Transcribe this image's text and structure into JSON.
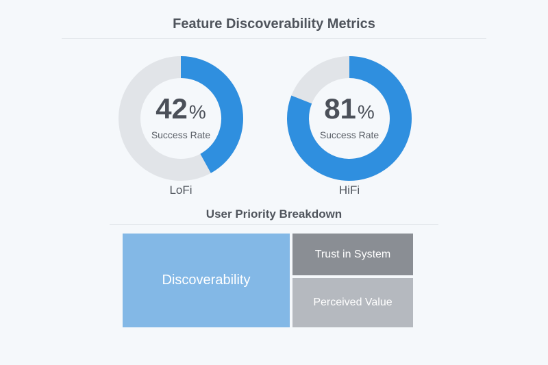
{
  "title": "Feature Discoverability Metrics",
  "colors": {
    "track": "#e1e4e8",
    "accent": "#2f8fdf",
    "discoverability": "#83b8e6",
    "trust": "#8a8e94",
    "value": "#b5b9bf"
  },
  "chart_data": [
    {
      "type": "pie",
      "variant": "donut",
      "label": "LoFi",
      "value": 42,
      "unit": "%",
      "center_label": "Success Rate",
      "max": 100
    },
    {
      "type": "pie",
      "variant": "donut",
      "label": "HiFi",
      "value": 81,
      "unit": "%",
      "center_label": "Success Rate",
      "max": 100
    },
    {
      "type": "heatmap",
      "variant": "treemap",
      "title": "User Priority Breakdown",
      "categories": [
        "Discoverability",
        "Trust in System",
        "Perceived Value"
      ]
    }
  ]
}
